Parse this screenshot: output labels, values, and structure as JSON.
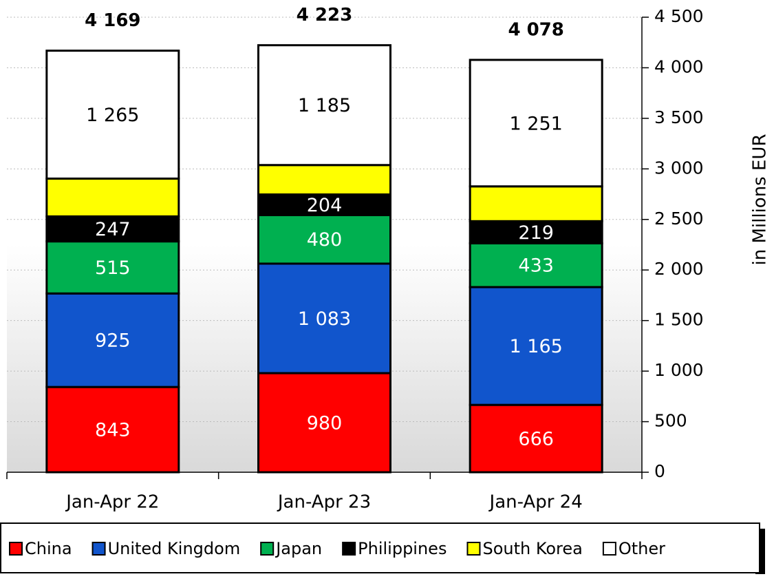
{
  "chart_data": {
    "type": "stacked-bar",
    "categories": [
      "Jan-Apr 22",
      "Jan-Apr 23",
      "Jan-Apr 24"
    ],
    "series": [
      {
        "name": "China",
        "color": "#ff0000",
        "text_color": "#ffffff",
        "values": [
          843,
          980,
          666
        ],
        "value_labels": [
          "843",
          "980",
          "666"
        ]
      },
      {
        "name": "United Kingdom",
        "color": "#1155cc",
        "text_color": "#ffffff",
        "values": [
          925,
          1083,
          1165
        ],
        "value_labels": [
          "925",
          "1 083",
          "1 165"
        ]
      },
      {
        "name": "Japan",
        "color": "#00b050",
        "text_color": "#ffffff",
        "values": [
          515,
          480,
          433
        ],
        "value_labels": [
          "515",
          "480",
          "433"
        ]
      },
      {
        "name": "Philippines",
        "color": "#000000",
        "text_color": "#ffffff",
        "values": [
          247,
          204,
          219
        ],
        "value_labels": [
          "247",
          "204",
          "219"
        ]
      },
      {
        "name": "South Korea",
        "color": "#ffff00",
        "values": [
          374,
          291,
          344
        ]
      },
      {
        "name": "Other",
        "color": "#ffffff",
        "text_color": "#000000",
        "values": [
          1265,
          1185,
          1251
        ],
        "value_labels": [
          "1 265",
          "1 185",
          "1 251"
        ]
      }
    ],
    "totals": [
      4169,
      4223,
      4078
    ],
    "total_labels": [
      "4 169",
      "4 223",
      "4 078"
    ],
    "y_label": "in Millions EUR",
    "ylim": [
      0,
      4500
    ],
    "yticks": [
      0,
      500,
      {
        "value": 1000,
        "label": "1 000"
      },
      {
        "value": 1500,
        "label": "1 500"
      },
      {
        "value": 2000,
        "label": "2 000"
      },
      {
        "value": 2500,
        "label": "2 500"
      },
      {
        "value": 3000,
        "label": "3 000"
      },
      {
        "value": 3500,
        "label": "3 500"
      },
      {
        "value": 4000,
        "label": "4 000"
      },
      {
        "value": 4500,
        "label": "4 500"
      }
    ],
    "grid": true,
    "legend": "bottom"
  }
}
